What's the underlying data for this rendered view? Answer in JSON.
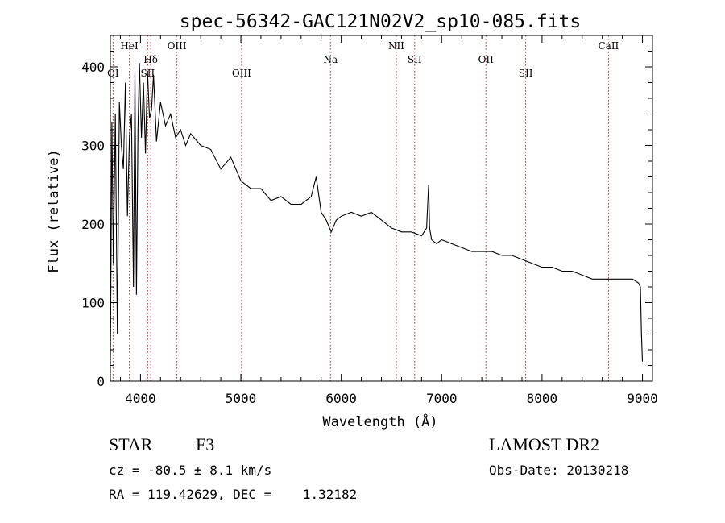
{
  "chart_data": {
    "type": "line",
    "title": "spec-56342-GAC121N02V2_sp10-085.fits",
    "xlabel": "Wavelength (Å)",
    "ylabel": "Flux (relative)",
    "xlim": [
      3700,
      9100
    ],
    "ylim": [
      0,
      440
    ],
    "xticks": [
      4000,
      5000,
      6000,
      7000,
      8000,
      9000
    ],
    "yticks": [
      0,
      100,
      200,
      300,
      400
    ],
    "grid": false,
    "line_color": "#000000",
    "marker_color": "#b03030",
    "lines": [
      {
        "label": "OI",
        "wavelength": 3727,
        "row": 1
      },
      {
        "label": "HeI",
        "wavelength": 3889,
        "row": 0
      },
      {
        "label": "SII",
        "wavelength": 4072,
        "row": 1
      },
      {
        "label": "Hδ",
        "wavelength": 4102,
        "row": 0.5
      },
      {
        "label": "OIII",
        "wavelength": 4363,
        "row": 0
      },
      {
        "label": "OIII",
        "wavelength": 5007,
        "row": 1
      },
      {
        "label": "Na",
        "wavelength": 5893,
        "row": 0.5
      },
      {
        "label": "NII",
        "wavelength": 6548,
        "row": 0
      },
      {
        "label": "SII",
        "wavelength": 6731,
        "row": 0.5
      },
      {
        "label": "OII",
        "wavelength": 7441,
        "row": 0.5
      },
      {
        "label": "SII",
        "wavelength": 7837,
        "row": 1
      },
      {
        "label": "CaII",
        "wavelength": 8662,
        "row": 0
      }
    ],
    "spectrum": {
      "x": [
        3700,
        3715,
        3730,
        3750,
        3770,
        3790,
        3810,
        3830,
        3850,
        3870,
        3890,
        3910,
        3930,
        3945,
        3960,
        3975,
        3990,
        4010,
        4030,
        4050,
        4070,
        4090,
        4110,
        4130,
        4160,
        4200,
        4250,
        4300,
        4350,
        4400,
        4450,
        4500,
        4600,
        4700,
        4800,
        4900,
        5000,
        5100,
        5200,
        5300,
        5400,
        5500,
        5600,
        5700,
        5750,
        5800,
        5850,
        5900,
        5950,
        6000,
        6100,
        6200,
        6300,
        6400,
        6500,
        6600,
        6700,
        6800,
        6850,
        6870,
        6880,
        6900,
        6950,
        7000,
        7100,
        7200,
        7300,
        7400,
        7500,
        7600,
        7700,
        7800,
        7900,
        8000,
        8100,
        8200,
        8300,
        8400,
        8500,
        8600,
        8700,
        8800,
        8900,
        8960,
        8980,
        8990,
        9000
      ],
      "y": [
        20,
        330,
        150,
        340,
        60,
        355,
        300,
        270,
        380,
        210,
        310,
        340,
        120,
        395,
        110,
        320,
        405,
        310,
        380,
        290,
        395,
        335,
        345,
        390,
        305,
        355,
        325,
        340,
        310,
        320,
        300,
        315,
        300,
        295,
        270,
        285,
        255,
        245,
        245,
        230,
        235,
        225,
        225,
        235,
        260,
        215,
        205,
        190,
        205,
        210,
        215,
        210,
        215,
        205,
        195,
        190,
        190,
        185,
        195,
        250,
        195,
        180,
        175,
        180,
        175,
        170,
        165,
        165,
        165,
        160,
        160,
        155,
        150,
        145,
        145,
        140,
        140,
        135,
        130,
        130,
        130,
        130,
        130,
        125,
        120,
        60,
        25
      ]
    }
  },
  "info": {
    "class_label": "STAR",
    "subclass": "F3",
    "survey": "LAMOST DR2",
    "cz": "cz = -80.5 ± 8.1 km/s",
    "obs_date": "Obs-Date: 20130218",
    "coords": "RA = 119.42629, DEC =    1.32182"
  }
}
